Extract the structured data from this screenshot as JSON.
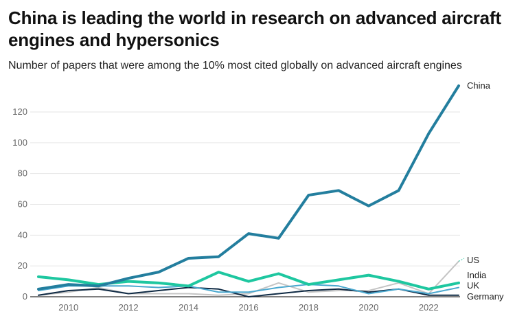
{
  "chart_data": {
    "type": "line",
    "title": "China is leading the world in research on advanced aircraft engines and hypersonics",
    "subtitle": "Number of papers that were among the 10% most cited globally on advanced aircraft engines",
    "xlabel": "",
    "ylabel": "",
    "x": [
      2009,
      2010,
      2011,
      2012,
      2013,
      2014,
      2015,
      2016,
      2017,
      2018,
      2019,
      2020,
      2021,
      2022,
      2023
    ],
    "xlim": [
      2009,
      2023
    ],
    "ylim": [
      0,
      130
    ],
    "x_ticks": [
      "2010",
      "2012",
      "2014",
      "2016",
      "2018",
      "2020",
      "2022"
    ],
    "y_ticks": [
      "0",
      "20",
      "40",
      "60",
      "80",
      "100",
      "120"
    ],
    "grid": "horizontal",
    "legend": "direct labels at line ends",
    "series": [
      {
        "name": "US",
        "color": "#c4c4c4",
        "width": 2,
        "values": [
          1,
          3,
          6,
          2,
          2,
          2,
          1,
          2,
          9,
          3,
          4,
          4,
          9,
          2,
          23
        ]
      },
      {
        "name": "Germany",
        "color": "#0f2a44",
        "width": 2,
        "values": [
          1,
          4,
          5,
          2,
          4,
          6,
          5,
          0,
          2,
          4,
          5,
          3,
          5,
          1,
          1
        ]
      },
      {
        "name": "UK",
        "color": "#4aa8cf",
        "width": 2,
        "values": [
          4,
          7,
          7,
          7,
          6,
          7,
          3,
          3,
          6,
          8,
          7,
          2,
          5,
          2,
          6
        ]
      },
      {
        "name": "India",
        "color": "#1ec7a0",
        "width": 4,
        "values": [
          13,
          11,
          8,
          10,
          9,
          7,
          16,
          10,
          15,
          8,
          11,
          14,
          10,
          5,
          9
        ]
      },
      {
        "name": "China",
        "color": "#237e9e",
        "width": 4,
        "values": [
          5,
          8,
          7,
          12,
          16,
          25,
          26,
          41,
          38,
          66,
          69,
          59,
          69,
          106,
          137
        ]
      }
    ]
  }
}
